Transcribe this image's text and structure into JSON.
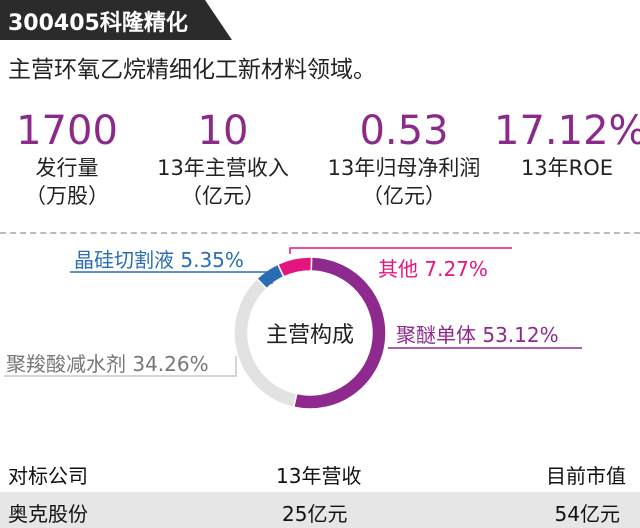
{
  "header": {
    "title": "300405科隆精化"
  },
  "subtitle": "主营环氧乙烷精细化工新材料领域。",
  "stats": [
    {
      "value": "1700",
      "label_line1": "发行量",
      "label_line2": "（万股）"
    },
    {
      "value": "10",
      "label_line1": "13年主营收入",
      "label_line2": "（亿元）"
    },
    {
      "value": "0.53",
      "label_line1": "13年归母净利润",
      "label_line2": "（亿元）"
    },
    {
      "value": "17.12%",
      "label_line1": "13年ROE",
      "label_line2": ""
    }
  ],
  "chart_data": {
    "type": "pie",
    "title": "主营构成",
    "slices": [
      {
        "label": "聚醚单体",
        "value": 53.12,
        "value_label": "53.12%",
        "color": "#8e2a8e"
      },
      {
        "label": "聚羧酸减水剂",
        "value": 34.26,
        "value_label": "34.26%",
        "color": "#e2e2e2"
      },
      {
        "label": "晶硅切割液",
        "value": 5.35,
        "value_label": "5.35%",
        "color": "#2a6db5"
      },
      {
        "label": "其他",
        "value": 7.27,
        "value_label": "7.27%",
        "color": "#e5157f"
      }
    ]
  },
  "table": {
    "headers": [
      "对标公司",
      "13年营收",
      "目前市值"
    ],
    "rows": [
      [
        "奥克股份",
        "25亿元",
        "54亿元"
      ]
    ]
  },
  "colors": {
    "accent": "#8b2a8b",
    "title_bg": "#2b2b2b"
  }
}
